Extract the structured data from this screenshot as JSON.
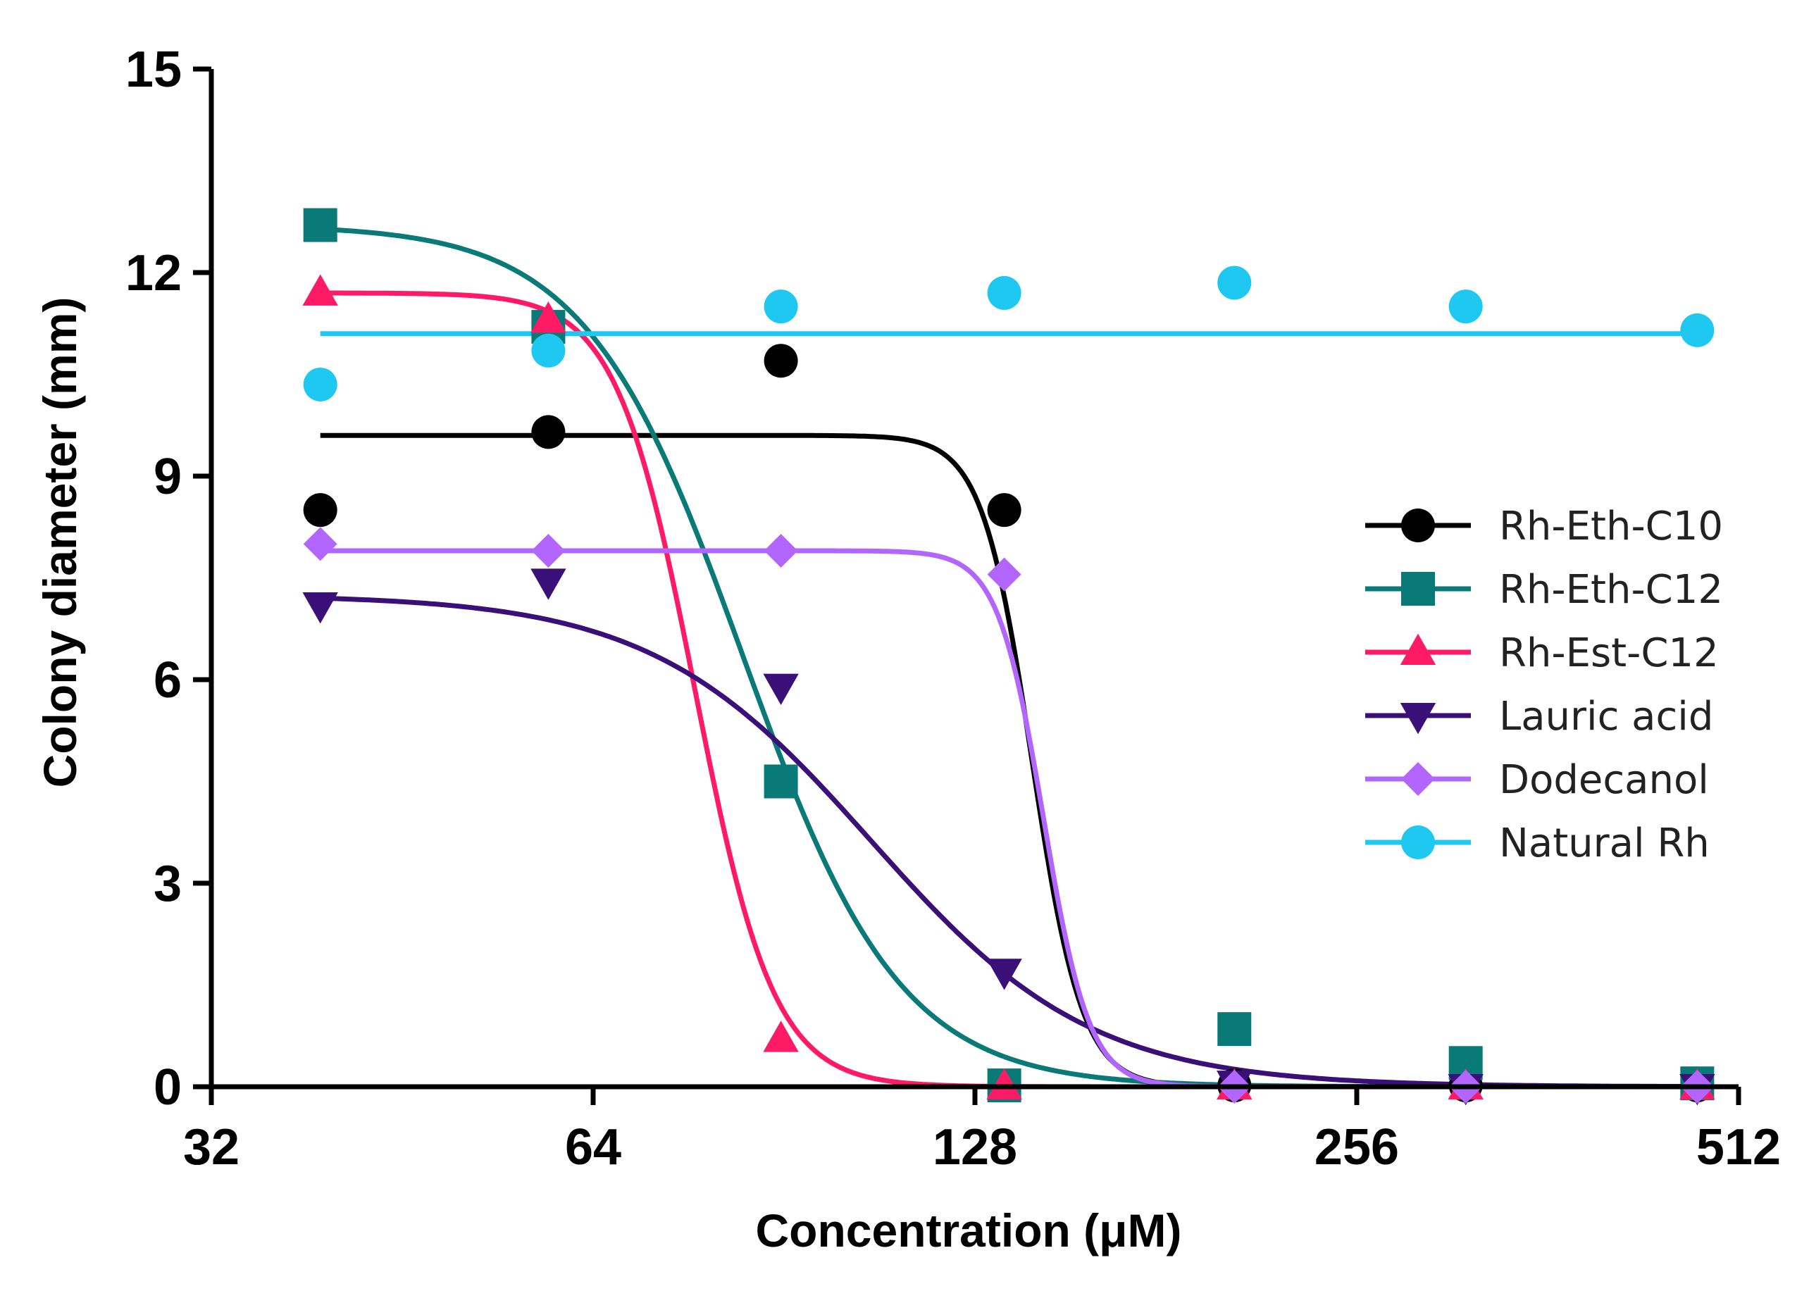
{
  "chart_data": {
    "type": "scatter",
    "xscale": "log2",
    "xlabel": "Concentration (μM)",
    "ylabel": "Colony diameter (mm)",
    "xlim": [
      32,
      512
    ],
    "ylim": [
      0,
      15
    ],
    "xticks": [
      32,
      64,
      128,
      256,
      512
    ],
    "xtick_labels": [
      "32",
      "64",
      "128",
      "256",
      "512"
    ],
    "yticks": [
      0,
      3,
      6,
      9,
      12,
      15
    ],
    "ytick_labels": [
      "0",
      "3",
      "6",
      "9",
      "12",
      "15"
    ],
    "legend_position": "right",
    "series": [
      {
        "name": "Rh-Eth-C10",
        "color": "#000000",
        "marker": "circle",
        "x": [
          39,
          59,
          90,
          135,
          205,
          312,
          475
        ],
        "y": [
          8.5,
          9.65,
          10.7,
          8.5,
          0.02,
          0.02,
          0.02
        ],
        "fit": {
          "top": 9.6,
          "bottom": 0,
          "ec50": 142,
          "hill": 22
        }
      },
      {
        "name": "Rh-Eth-C12",
        "color": "#0a7a78",
        "marker": "square",
        "x": [
          39,
          59,
          90,
          135,
          205,
          312,
          475
        ],
        "y": [
          12.7,
          11.2,
          4.5,
          0.02,
          0.85,
          0.35,
          0.05
        ],
        "fit": {
          "top": 12.7,
          "bottom": 0,
          "ec50": 84,
          "hill": 7
        }
      },
      {
        "name": "Rh-Est-C12",
        "color": "#ff1a66",
        "marker": "triangle-up",
        "x": [
          39,
          59,
          90,
          135,
          205,
          312,
          475
        ],
        "y": [
          11.7,
          11.3,
          0.7,
          0.0,
          0.0,
          0.0,
          0.0
        ],
        "fit": {
          "top": 11.7,
          "bottom": 0,
          "ec50": 77,
          "hill": 14
        }
      },
      {
        "name": "Lauric acid",
        "color": "#3a1078",
        "marker": "triangle-down",
        "x": [
          39,
          59,
          90,
          135,
          205,
          312,
          475
        ],
        "y": [
          7.1,
          7.45,
          5.9,
          1.7,
          0.05,
          0.0,
          0.0
        ],
        "fit": {
          "top": 7.25,
          "bottom": 0,
          "ec50": 106,
          "hill": 5
        }
      },
      {
        "name": "Dodecanol",
        "color": "#b266ff",
        "marker": "diamond",
        "x": [
          39,
          59,
          90,
          135,
          205,
          312,
          475
        ],
        "y": [
          8.0,
          7.9,
          7.9,
          7.55,
          0.0,
          0.0,
          0.0
        ],
        "fit": {
          "top": 7.9,
          "bottom": 0,
          "ec50": 145,
          "hill": 24
        }
      },
      {
        "name": "Natural Rh",
        "color": "#1ec8f0",
        "marker": "circle",
        "x": [
          39,
          59,
          90,
          135,
          205,
          312,
          475
        ],
        "y": [
          10.35,
          10.85,
          11.5,
          11.7,
          11.85,
          11.5,
          11.15
        ],
        "fit": {
          "constant": 11.1
        }
      }
    ]
  }
}
